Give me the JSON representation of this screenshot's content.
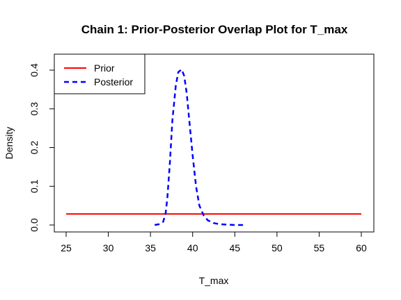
{
  "chart_data": {
    "type": "line",
    "title": "Chain 1: Prior-Posterior Overlap Plot for T_max",
    "xlabel": "T_max",
    "ylabel": "Density",
    "xlim": [
      25,
      60
    ],
    "ylim": [
      0,
      0.4
    ],
    "x_ticks": [
      "25",
      "30",
      "35",
      "40",
      "45",
      "50",
      "55",
      "60"
    ],
    "y_ticks": [
      "0.0",
      "0.1",
      "0.2",
      "0.3",
      "0.4"
    ],
    "legend_placement": "top-left",
    "series": [
      {
        "name": "Prior",
        "color": "#ff0000",
        "line_style": "solid",
        "x": [
          25,
          60
        ],
        "y": [
          0.0286,
          0.0286
        ]
      },
      {
        "name": "Posterior",
        "color": "#0000ff",
        "line_style": "dashed",
        "x": [
          35.5,
          36.0,
          36.5,
          36.8,
          37.0,
          37.3,
          37.6,
          38.0,
          38.3,
          38.7,
          39.0,
          39.3,
          39.6,
          40.0,
          40.4,
          40.8,
          41.3,
          41.8,
          42.5,
          43.2,
          44.0,
          45.0,
          46.0
        ],
        "y": [
          0.0,
          0.002,
          0.008,
          0.03,
          0.07,
          0.16,
          0.27,
          0.36,
          0.395,
          0.402,
          0.385,
          0.34,
          0.27,
          0.18,
          0.1,
          0.05,
          0.025,
          0.012,
          0.005,
          0.002,
          0.001,
          0.0,
          0.0
        ]
      }
    ]
  }
}
